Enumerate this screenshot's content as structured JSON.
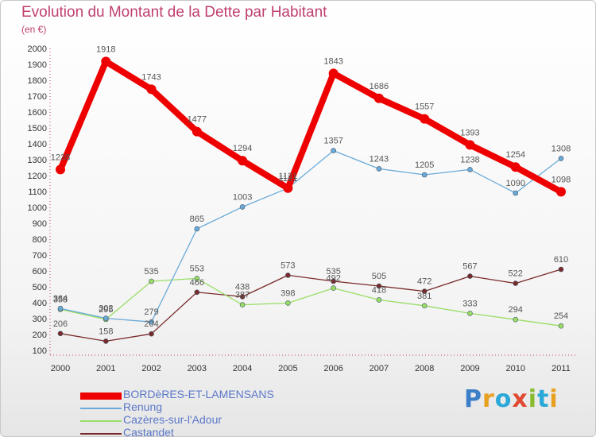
{
  "header": {
    "title": "Evolution du Montant de la Dette par Habitant",
    "unit": "(en €)"
  },
  "logo": {
    "letters": [
      "P",
      "r",
      "o",
      "x",
      "i",
      "t",
      "i"
    ],
    "colors": [
      "#3a7fc8",
      "#e8a020",
      "#2aa8d8",
      "#e04a30",
      "#88bb30",
      "#2aa8d8",
      "#e8a020"
    ]
  },
  "chart_data": {
    "type": "line",
    "title": "Evolution du Montant de la Dette par Habitant",
    "subtitle": "(en €)",
    "xlabel": "",
    "ylabel": "",
    "x": [
      "2000",
      "2001",
      "2002",
      "2003",
      "2004",
      "2005",
      "2006",
      "2007",
      "2008",
      "2009",
      "2010",
      "2011"
    ],
    "ylim": [
      100,
      2000
    ],
    "yticks": [
      100,
      200,
      300,
      400,
      500,
      600,
      700,
      800,
      900,
      1000,
      1100,
      1200,
      1300,
      1400,
      1500,
      1600,
      1700,
      1800,
      1900,
      2000
    ],
    "grid": false,
    "legend": "bottom-left",
    "series": [
      {
        "name": "BORDèRES-ET-LAMENSANS",
        "color": "#ee0000",
        "width": 8,
        "marker": 6,
        "values": [
          1238,
          1918,
          1743,
          1477,
          1294,
          1121,
          1843,
          1686,
          1557,
          1393,
          1254,
          1098
        ]
      },
      {
        "name": "Renung",
        "color": "#6aaad8",
        "width": 1.3,
        "marker": 3,
        "values": [
          364,
          302,
          279,
          865,
          1003,
          1121,
          1357,
          1243,
          1205,
          1238,
          1090,
          1308
        ]
      },
      {
        "name": "Cazères-sur-l'Adour",
        "color": "#99dd66",
        "width": 1.3,
        "marker": 3,
        "values": [
          358,
          295,
          535,
          553,
          387,
          398,
          492,
          418,
          381,
          333,
          294,
          254
        ]
      },
      {
        "name": "Castandet",
        "color": "#7a2a2a",
        "width": 1.3,
        "marker": 3,
        "values": [
          206,
          158,
          204,
          466,
          438,
          573,
          535,
          505,
          472,
          567,
          522,
          610
        ]
      }
    ]
  }
}
